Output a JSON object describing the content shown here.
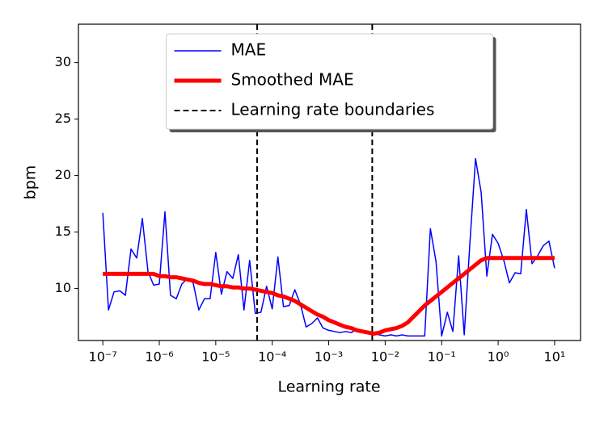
{
  "chart_data": {
    "type": "line",
    "xlabel": "Learning rate",
    "ylabel": "bpm",
    "xscale": "log",
    "xlim": [
      3.7e-08,
      28.8
    ],
    "ylim": [
      5.4,
      33.4
    ],
    "xticks": [
      {
        "value": 1e-07,
        "label": "10⁻⁷"
      },
      {
        "value": 1e-06,
        "label": "10⁻⁶"
      },
      {
        "value": 1e-05,
        "label": "10⁻⁵"
      },
      {
        "value": 0.0001,
        "label": "10⁻⁴"
      },
      {
        "value": 0.001,
        "label": "10⁻³"
      },
      {
        "value": 0.01,
        "label": "10⁻²"
      },
      {
        "value": 0.1,
        "label": "10⁻¹"
      },
      {
        "value": 1,
        "label": "10⁰"
      },
      {
        "value": 10,
        "label": "10¹"
      }
    ],
    "yticks": [
      10,
      15,
      20,
      25,
      30
    ],
    "grid": false,
    "legend": "upper center",
    "x": [
      1e-07,
      1.26e-07,
      1.58e-07,
      2e-07,
      2.51e-07,
      3.16e-07,
      3.98e-07,
      5.01e-07,
      6.31e-07,
      7.94e-07,
      1e-06,
      1.26e-06,
      1.58e-06,
      2e-06,
      2.51e-06,
      3.16e-06,
      3.98e-06,
      5.01e-06,
      6.31e-06,
      7.94e-06,
      1e-05,
      1.26e-05,
      1.58e-05,
      2e-05,
      2.51e-05,
      3.16e-05,
      3.98e-05,
      5.01e-05,
      6.31e-05,
      7.94e-05,
      0.0001,
      0.000126,
      0.000158,
      0.0002,
      0.000251,
      0.000316,
      0.000398,
      0.000501,
      0.000631,
      0.000794,
      0.001,
      0.00126,
      0.00158,
      0.002,
      0.00251,
      0.00316,
      0.00398,
      0.00501,
      0.00631,
      0.00794,
      0.01,
      0.0126,
      0.0158,
      0.02,
      0.0251,
      0.0316,
      0.0398,
      0.0501,
      0.0631,
      0.0794,
      0.1,
      0.126,
      0.158,
      0.2,
      0.251,
      0.316,
      0.398,
      0.501,
      0.631,
      0.794,
      1,
      1.26,
      1.58,
      2,
      2.51,
      3.16,
      3.98,
      5.01,
      6.31,
      7.94,
      10
    ],
    "series": [
      {
        "name": "MAE",
        "color": "#0000ff",
        "width": 1.5,
        "values": [
          16.7,
          8.1,
          9.7,
          9.8,
          9.4,
          13.5,
          12.7,
          16.2,
          11.5,
          10.3,
          10.4,
          16.8,
          9.4,
          9.1,
          10.4,
          10.9,
          10.5,
          8.1,
          9.1,
          9.1,
          13.2,
          9.5,
          11.5,
          10.9,
          13.0,
          8.1,
          12.5,
          7.8,
          7.9,
          10.2,
          8.2,
          12.8,
          8.4,
          8.5,
          9.9,
          8.6,
          6.6,
          6.9,
          7.4,
          6.5,
          6.3,
          6.2,
          6.1,
          6.2,
          6.1,
          6.4,
          6.3,
          6.0,
          6.0,
          5.9,
          5.8,
          5.9,
          5.8,
          5.9,
          5.8,
          5.8,
          5.8,
          5.8,
          15.3,
          12.4,
          5.8,
          7.9,
          6.2,
          12.9,
          5.9,
          14.0,
          21.5,
          18.5,
          11.1,
          14.8,
          14.0,
          12.5,
          10.5,
          11.4,
          11.3,
          17.0,
          12.2,
          12.9,
          13.8,
          14.2,
          11.8
        ]
      },
      {
        "name": "Smoothed MAE",
        "color": "#ff0000",
        "width": 5,
        "values": [
          11.3,
          11.3,
          11.3,
          11.3,
          11.3,
          11.3,
          11.3,
          11.3,
          11.3,
          11.3,
          11.1,
          11.1,
          11.0,
          11.0,
          10.9,
          10.8,
          10.7,
          10.5,
          10.4,
          10.4,
          10.3,
          10.2,
          10.2,
          10.1,
          10.1,
          10.0,
          10.0,
          9.9,
          9.8,
          9.7,
          9.6,
          9.4,
          9.3,
          9.1,
          8.9,
          8.6,
          8.3,
          8.0,
          7.7,
          7.5,
          7.2,
          7.0,
          6.8,
          6.6,
          6.5,
          6.3,
          6.2,
          6.1,
          6.0,
          6.1,
          6.3,
          6.4,
          6.5,
          6.7,
          7.0,
          7.5,
          8.0,
          8.5,
          8.9,
          9.3,
          9.7,
          10.1,
          10.5,
          10.9,
          11.3,
          11.7,
          12.1,
          12.5,
          12.7,
          12.7,
          12.7,
          12.7,
          12.7,
          12.7,
          12.7,
          12.7,
          12.7,
          12.7,
          12.7,
          12.7,
          12.7
        ]
      }
    ],
    "boundaries": {
      "name": "Learning rate boundaries",
      "color": "#000000",
      "values": [
        5.4e-05,
        0.0059
      ]
    }
  }
}
